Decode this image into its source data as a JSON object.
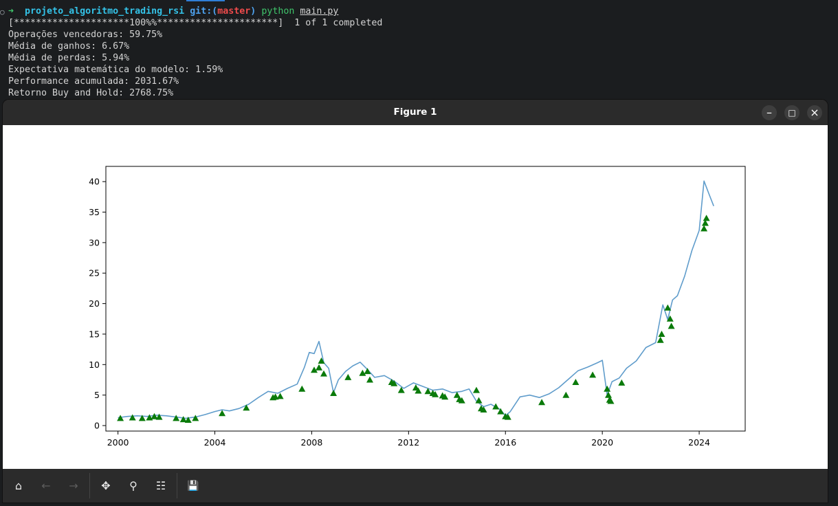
{
  "terminal": {
    "prompt_arrow": "➜",
    "dir": "projeto_algoritmo_trading_rsi",
    "git_label": "git:(",
    "branch": "master",
    "git_close": ")",
    "command": "python",
    "file": "main.py",
    "progress": "[*********************100%%**********************]  1 of 1 completed",
    "lines": [
      "Operações vencedoras: 59.75%",
      "Média de ganhos: 6.67%",
      "Média de perdas: 5.94%",
      "Expectativa matemática do modelo: 1.59%",
      "Performance acumulada: 2031.67%",
      "Retorno Buy and Hold: 2768.75%"
    ]
  },
  "window": {
    "title": "Figure 1",
    "minimize_glyph": "–",
    "maximize_glyph": "□",
    "close_glyph": "×"
  },
  "toolbar": {
    "icons": [
      "home-icon",
      "back-arrow-icon",
      "forward-arrow-icon",
      "pan-icon",
      "zoom-icon",
      "configure-subplots-icon",
      "save-icon"
    ],
    "glyphs": [
      "⌂",
      "←",
      "→",
      "✥",
      "⚲",
      "☷",
      "💾"
    ]
  },
  "colors": {
    "line": "#5f9ccb",
    "marker": "#0a7a0a",
    "terminal_bg": "#1b1d1f"
  },
  "chart_data": {
    "type": "line",
    "title": "",
    "xlabel": "",
    "ylabel": "",
    "xlim": [
      1999.5,
      2025.9
    ],
    "ylim": [
      -0.9,
      42.5
    ],
    "xticks": [
      2000,
      2004,
      2008,
      2012,
      2016,
      2020,
      2024
    ],
    "yticks": [
      0,
      5,
      10,
      15,
      20,
      25,
      30,
      35,
      40
    ],
    "grid": false,
    "series": [
      {
        "kind": "line",
        "x": [
          2000.0,
          2000.4,
          2000.8,
          2001.2,
          2001.6,
          2002.0,
          2002.4,
          2002.8,
          2003.2,
          2003.6,
          2004.0,
          2004.3,
          2004.6,
          2005.0,
          2005.4,
          2005.8,
          2006.2,
          2006.6,
          2007.0,
          2007.4,
          2007.7,
          2007.9,
          2008.1,
          2008.3,
          2008.5,
          2008.7,
          2008.9,
          2009.1,
          2009.4,
          2009.7,
          2010.0,
          2010.3,
          2010.6,
          2011.0,
          2011.4,
          2011.8,
          2012.2,
          2012.6,
          2013.0,
          2013.4,
          2013.8,
          2014.2,
          2014.5,
          2014.8,
          2015.1,
          2015.4,
          2015.8,
          2016.0,
          2016.2,
          2016.6,
          2017.0,
          2017.4,
          2017.8,
          2018.2,
          2018.6,
          2019.0,
          2019.4,
          2019.8,
          2020.0,
          2020.2,
          2020.4,
          2020.7,
          2021.0,
          2021.4,
          2021.8,
          2022.2,
          2022.5,
          2022.7,
          2022.9,
          2023.1,
          2023.4,
          2023.7,
          2024.0,
          2024.2,
          2024.4,
          2024.6
        ],
        "y": [
          1.3,
          1.5,
          1.6,
          1.5,
          1.7,
          1.6,
          1.4,
          1.2,
          1.4,
          1.8,
          2.3,
          2.6,
          2.4,
          2.8,
          3.5,
          4.6,
          5.6,
          5.3,
          6.1,
          6.8,
          9.6,
          12.0,
          11.8,
          13.8,
          10.3,
          9.4,
          5.4,
          7.5,
          8.9,
          9.8,
          10.4,
          9.2,
          7.9,
          8.2,
          7.3,
          6.1,
          7.0,
          6.4,
          5.8,
          6.0,
          5.4,
          5.6,
          6.0,
          4.0,
          3.1,
          3.5,
          2.6,
          1.6,
          2.3,
          4.7,
          5.0,
          4.6,
          5.2,
          6.2,
          7.6,
          9.0,
          9.6,
          10.3,
          10.7,
          5.0,
          7.2,
          7.8,
          9.4,
          10.6,
          12.8,
          13.6,
          19.8,
          17.4,
          20.6,
          21.3,
          24.5,
          28.7,
          32.0,
          40.1,
          38.0,
          36.0
        ]
      },
      {
        "kind": "markers",
        "name": "buy",
        "x": [
          2000.1,
          2000.6,
          2001.0,
          2001.3,
          2001.5,
          2001.7,
          2002.4,
          2002.7,
          2002.9,
          2003.2,
          2004.3,
          2005.3,
          2006.4,
          2006.5,
          2006.7,
          2007.6,
          2008.1,
          2008.3,
          2008.4,
          2008.5,
          2008.9,
          2009.5,
          2010.1,
          2010.3,
          2010.4,
          2011.3,
          2011.4,
          2011.7,
          2012.3,
          2012.4,
          2012.8,
          2013.0,
          2013.1,
          2013.4,
          2013.5,
          2014.0,
          2014.1,
          2014.2,
          2014.8,
          2014.9,
          2015.0,
          2015.1,
          2015.6,
          2015.8,
          2016.0,
          2016.1,
          2017.5,
          2018.5,
          2018.9,
          2019.6,
          2020.2,
          2020.25,
          2020.3,
          2020.35,
          2020.8,
          2022.4,
          2022.45,
          2022.7,
          2022.8,
          2022.85,
          2024.2,
          2024.25,
          2024.3
        ],
        "y": [
          1.2,
          1.3,
          1.2,
          1.3,
          1.5,
          1.4,
          1.2,
          1.0,
          0.9,
          1.2,
          2.0,
          2.9,
          4.6,
          4.7,
          4.8,
          6.0,
          9.1,
          9.5,
          10.6,
          8.5,
          5.3,
          7.9,
          8.6,
          8.9,
          7.5,
          7.1,
          6.9,
          5.8,
          6.2,
          5.7,
          5.6,
          5.3,
          5.1,
          4.9,
          4.7,
          5.0,
          4.3,
          4.1,
          5.8,
          4.1,
          2.8,
          2.6,
          3.1,
          2.3,
          1.5,
          1.4,
          3.8,
          5.0,
          7.1,
          8.3,
          6.0,
          5.0,
          4.2,
          4.0,
          7.0,
          14.0,
          15.0,
          19.3,
          17.5,
          16.3,
          32.3,
          33.2,
          34.0
        ]
      }
    ]
  }
}
